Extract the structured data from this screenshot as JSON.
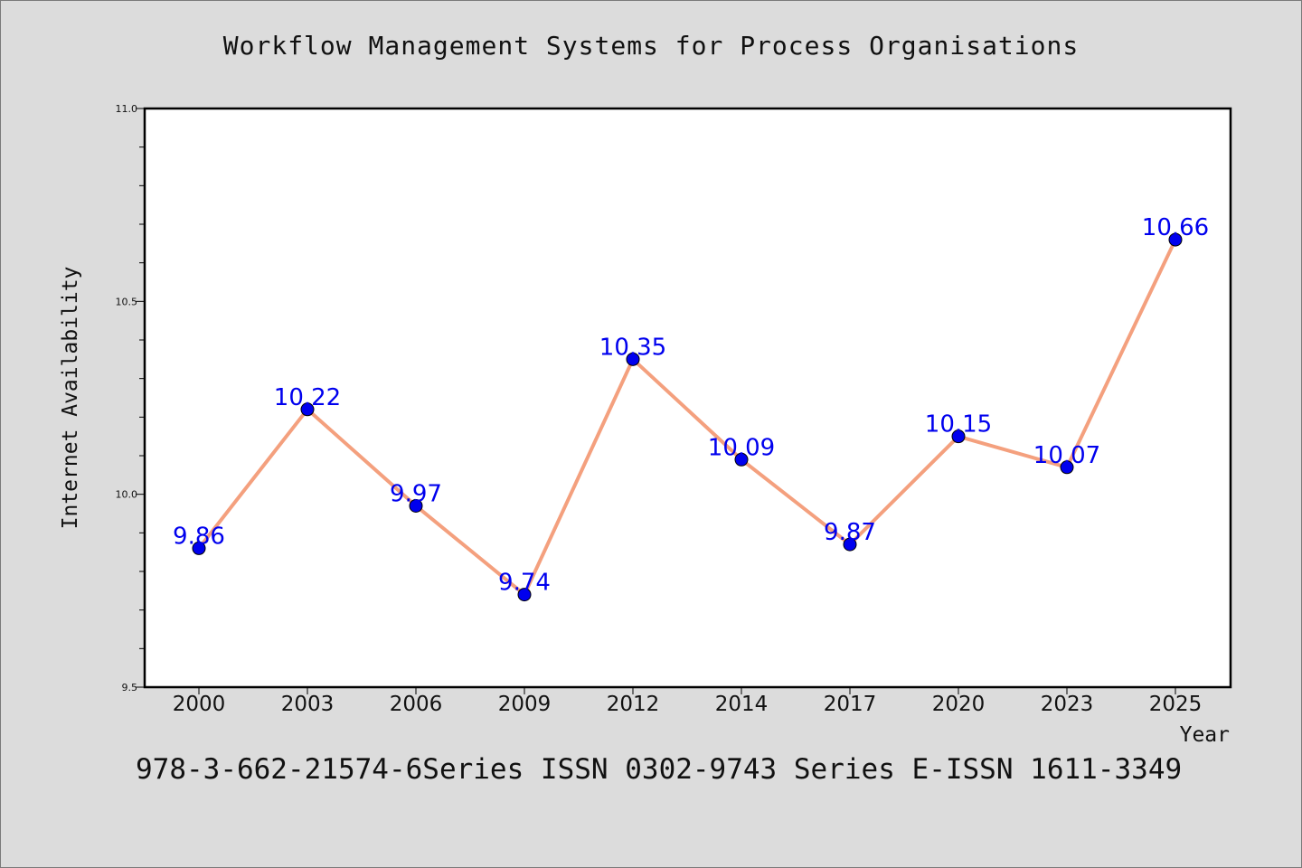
{
  "chart_data": {
    "type": "line",
    "title": "Workflow Management Systems for Process Organisations",
    "xlabel": "Year",
    "ylabel": "Internet Availability",
    "categories": [
      "2000",
      "2003",
      "2006",
      "2009",
      "2012",
      "2014",
      "2017",
      "2020",
      "2023",
      "2025"
    ],
    "series": [
      {
        "values": [
          9.86,
          10.22,
          9.97,
          9.74,
          10.35,
          10.09,
          9.87,
          10.15,
          10.07,
          10.66
        ],
        "labels": [
          "9.86",
          "10.22",
          "9.97",
          "9.74",
          "10.35",
          "10.09",
          "9.87",
          "10.15",
          "10.07",
          "10.66"
        ],
        "line_color": "#f4a07e",
        "marker_color": "#0000ee",
        "label_color": "#0000ee"
      }
    ],
    "ylim": [
      9.5,
      11.0
    ],
    "yticks": [
      "9.5",
      "10.0",
      "10.5",
      "11.0"
    ],
    "grid": false
  },
  "footer": "978-3-662-21574-6Series ISSN 0302-9743 Series E-ISSN 1611-3349"
}
